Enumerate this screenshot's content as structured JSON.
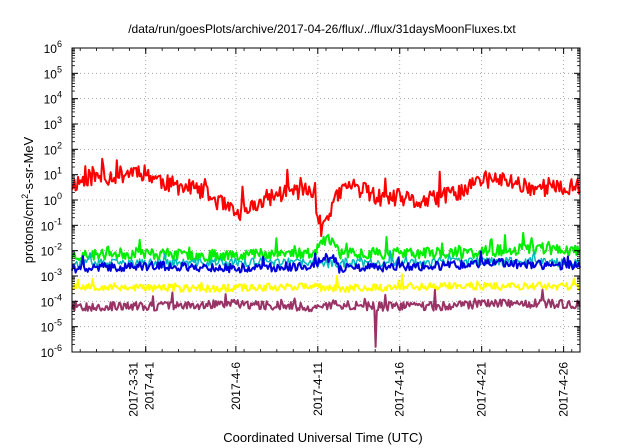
{
  "chart_data": {
    "type": "line",
    "title": "/data/run/goesPlots/archive/2017-04-26/flux/../flux/31daysMoonFluxes.txt",
    "xlabel": "Coordinated Universal Time (UTC)",
    "ylabel_parts": [
      "protons/cm",
      "2",
      "-s-sr-MeV"
    ],
    "yscale": "log",
    "ylim_exp": [
      -6,
      6
    ],
    "xlim_day": [
      0,
      31
    ],
    "grid": true,
    "y_ticks": [
      {
        "base": "10",
        "exp": "-6",
        "e": -6
      },
      {
        "base": "10",
        "exp": "-5",
        "e": -5
      },
      {
        "base": "10",
        "exp": "-4",
        "e": -4
      },
      {
        "base": "10",
        "exp": "-3",
        "e": -3
      },
      {
        "base": "10",
        "exp": "-2",
        "e": -2
      },
      {
        "base": "10",
        "exp": "-1",
        "e": -1
      },
      {
        "base": "10",
        "exp": "0",
        "e": 0
      },
      {
        "base": "10",
        "exp": "1",
        "e": 1
      },
      {
        "base": "10",
        "exp": "2",
        "e": 2
      },
      {
        "base": "10",
        "exp": "3",
        "e": 3
      },
      {
        "base": "10",
        "exp": "4",
        "e": 4
      },
      {
        "base": "10",
        "exp": "5",
        "e": 5
      },
      {
        "base": "10",
        "exp": "6",
        "e": 6
      }
    ],
    "x_ticks": [
      {
        "day": 4.5,
        "labels": [
          "2017-3-31",
          "2017-4-1"
        ]
      },
      {
        "day": 10,
        "labels": [
          "2017-4-6"
        ]
      },
      {
        "day": 15,
        "labels": [
          "2017-4-11"
        ]
      },
      {
        "day": 20,
        "labels": [
          "2017-4-16"
        ]
      },
      {
        "day": 25,
        "labels": [
          "2017-4-21"
        ]
      },
      {
        "day": 30,
        "labels": [
          "2017-4-26"
        ]
      }
    ],
    "series": [
      {
        "color": "#ff0000",
        "width": 2,
        "seed": 11,
        "base": [
          [
            0,
            0.6
          ],
          [
            1,
            0.9
          ],
          [
            2,
            0.9
          ],
          [
            3,
            1.0
          ],
          [
            4,
            1.2
          ],
          [
            5,
            0.9
          ],
          [
            6,
            0.6
          ],
          [
            7,
            0.5
          ],
          [
            8,
            0.3
          ],
          [
            9,
            -0.1
          ],
          [
            10,
            -0.6
          ],
          [
            11,
            -0.3
          ],
          [
            12,
            0.1
          ],
          [
            13,
            0.3
          ],
          [
            14,
            0.4
          ],
          [
            14.8,
            0.2
          ],
          [
            15.2,
            -1.2
          ],
          [
            15.8,
            -0.3
          ],
          [
            16.5,
            0.4
          ],
          [
            17,
            0.6
          ],
          [
            18,
            0.3
          ],
          [
            19,
            0.0
          ],
          [
            20,
            0.1
          ],
          [
            21,
            -0.1
          ],
          [
            22,
            0.0
          ],
          [
            23,
            0.2
          ],
          [
            24,
            0.4
          ],
          [
            25,
            0.8
          ],
          [
            26,
            0.8
          ],
          [
            27,
            0.7
          ],
          [
            28,
            0.5
          ],
          [
            29,
            0.5
          ],
          [
            30,
            0.4
          ],
          [
            31,
            0.6
          ]
        ],
        "noise": 0.7,
        "spike_prob": 0.05,
        "spike_amp": 1.0
      },
      {
        "color": "#00ee00",
        "width": 2,
        "seed": 23,
        "base": [
          [
            0,
            -2.2
          ],
          [
            4,
            -2.1
          ],
          [
            8,
            -2.2
          ],
          [
            12,
            -2.1
          ],
          [
            14.8,
            -2.1
          ],
          [
            15.2,
            -1.6
          ],
          [
            16,
            -1.6
          ],
          [
            16.3,
            -2.1
          ],
          [
            20,
            -2.1
          ],
          [
            24,
            -2.1
          ],
          [
            28,
            -1.9
          ],
          [
            31,
            -2.0
          ]
        ],
        "noise": 0.45,
        "spike_prob": 0.06,
        "spike_amp": 0.5
      },
      {
        "color": "#00bbbb",
        "width": 1.5,
        "seed": 37,
        "base": [
          [
            0,
            -2.5
          ],
          [
            6,
            -2.5
          ],
          [
            12,
            -2.45
          ],
          [
            16,
            -2.5
          ],
          [
            22,
            -2.45
          ],
          [
            27,
            -2.4
          ],
          [
            31,
            -2.5
          ]
        ],
        "noise": 0.35,
        "spike_prob": 0.05,
        "spike_amp": 0.4
      },
      {
        "color": "#0000dd",
        "width": 2,
        "seed": 41,
        "base": [
          [
            0,
            -2.7
          ],
          [
            5,
            -2.6
          ],
          [
            10,
            -2.7
          ],
          [
            14.8,
            -2.6
          ],
          [
            15.2,
            -2.3
          ],
          [
            16,
            -2.3
          ],
          [
            16.3,
            -2.7
          ],
          [
            22,
            -2.6
          ],
          [
            26,
            -2.5
          ],
          [
            31,
            -2.6
          ]
        ],
        "noise": 0.35,
        "spike_prob": 0.05,
        "spike_amp": 0.5
      },
      {
        "color": "#ffff00",
        "width": 2,
        "seed": 53,
        "base": [
          [
            0,
            -3.4
          ],
          [
            8,
            -3.5
          ],
          [
            14,
            -3.4
          ],
          [
            16,
            -3.5
          ],
          [
            22,
            -3.4
          ],
          [
            28,
            -3.4
          ],
          [
            31,
            -3.4
          ]
        ],
        "noise": 0.3,
        "spike_prob": 0.04,
        "spike_amp": 0.4
      },
      {
        "color": "#993366",
        "width": 2,
        "seed": 67,
        "base": [
          [
            0,
            -4.2
          ],
          [
            6,
            -4.2
          ],
          [
            10,
            -4.1
          ],
          [
            14,
            -4.2
          ],
          [
            15,
            -4.3
          ],
          [
            16,
            -4.1
          ],
          [
            18,
            -4.2
          ],
          [
            22,
            -4.2
          ],
          [
            26,
            -4.1
          ],
          [
            31,
            -4.1
          ]
        ],
        "noise": 0.35,
        "spike_prob": 0.03,
        "spike_amp": 0.5,
        "dip": {
          "day": 18.5,
          "value": -5.8
        }
      }
    ]
  }
}
